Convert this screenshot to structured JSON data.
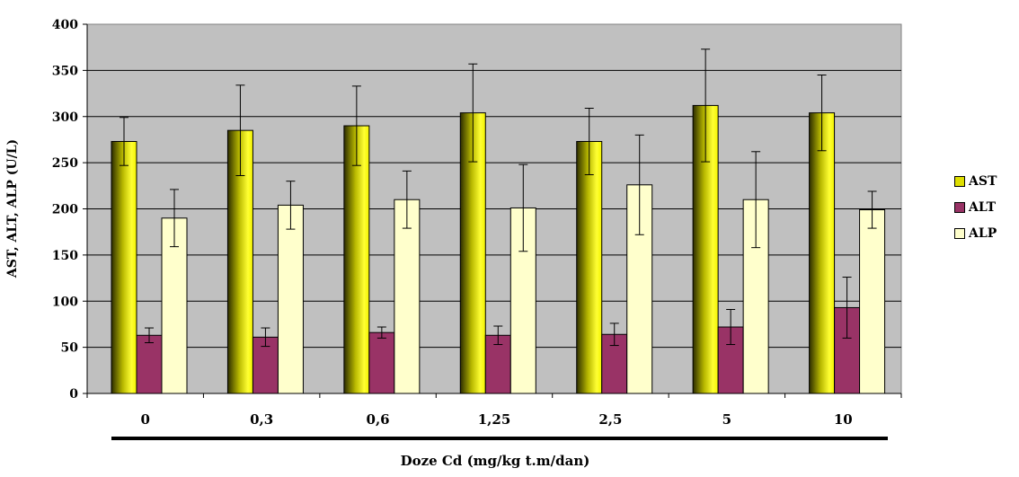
{
  "chart_data": {
    "type": "bar",
    "title": "",
    "xlabel": "Doze Cd (mg/kg t.m/dan)",
    "ylabel": "AST, ALT, ALP (U/L)",
    "categories": [
      "0",
      "0,3",
      "0,6",
      "1,25",
      "2,5",
      "5",
      "10"
    ],
    "ylim": [
      0,
      400
    ],
    "yticks": [
      "0",
      "50",
      "100",
      "150",
      "200",
      "250",
      "300",
      "350",
      "400"
    ],
    "grid": true,
    "legend_position": "right",
    "plot_background": "#c0c0c0",
    "series": [
      {
        "name": "AST",
        "color": "#dede00",
        "values": [
          273,
          285,
          290,
          304,
          273,
          312,
          304
        ],
        "errors": [
          26,
          49,
          43,
          53,
          36,
          61,
          41
        ]
      },
      {
        "name": "ALT",
        "color": "#993366",
        "values": [
          63,
          61,
          66,
          63,
          64,
          72,
          93
        ],
        "errors": [
          8,
          10,
          6,
          10,
          12,
          19,
          33
        ]
      },
      {
        "name": "ALP",
        "color": "#ffffcc",
        "values": [
          190,
          204,
          210,
          201,
          226,
          210,
          199
        ],
        "errors": [
          31,
          26,
          31,
          47,
          54,
          52,
          20
        ]
      }
    ]
  }
}
